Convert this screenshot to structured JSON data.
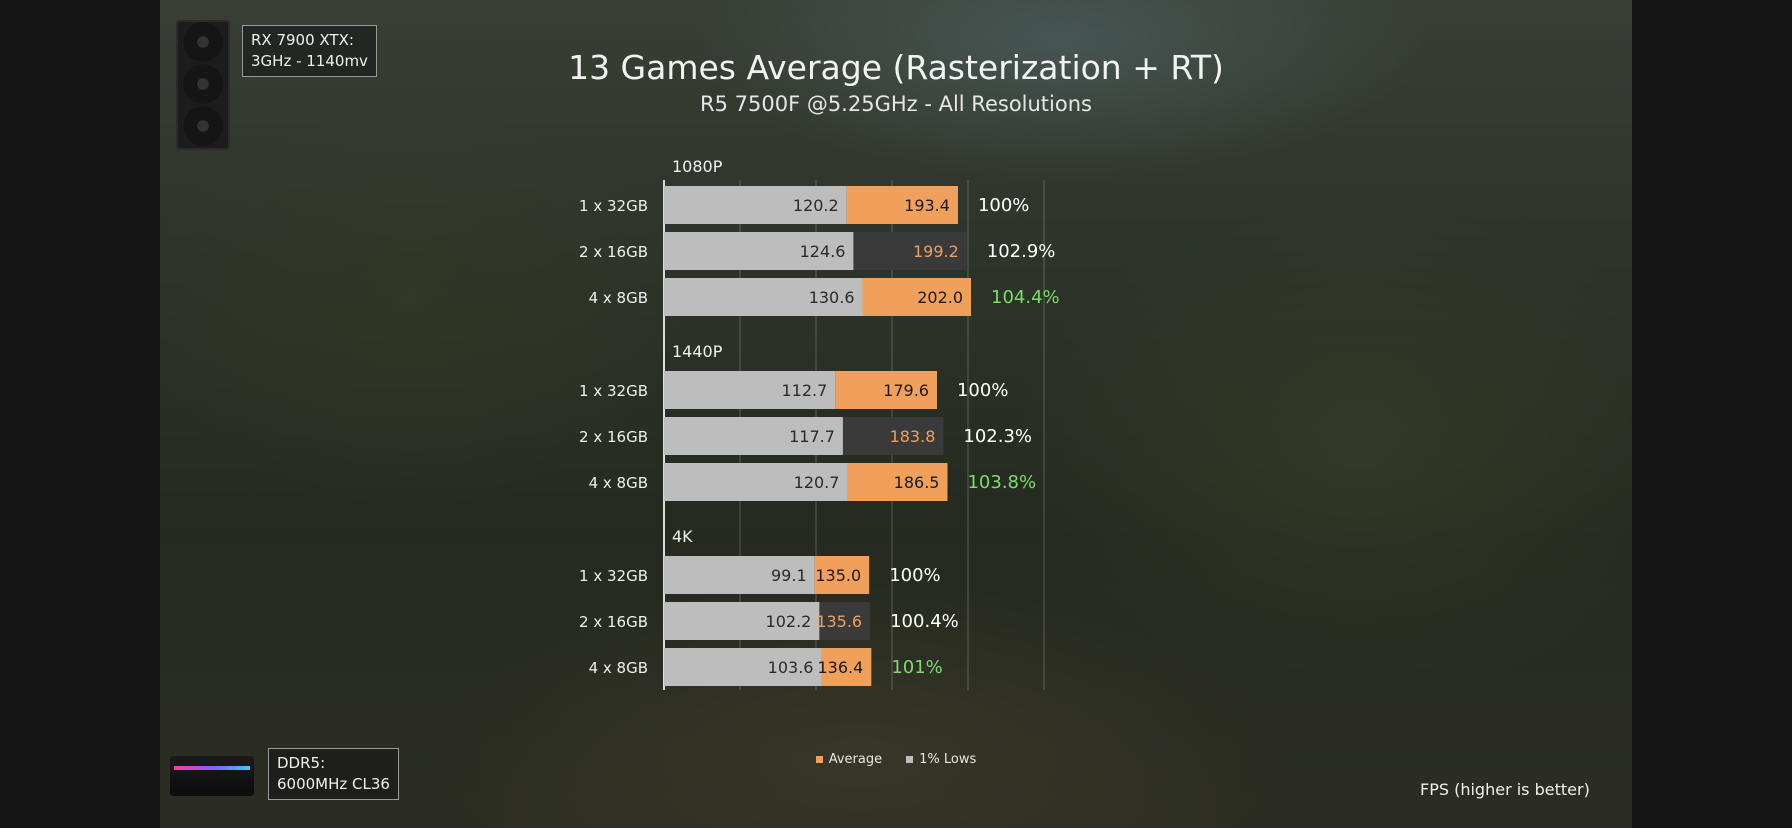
{
  "header": {
    "title": "13 Games Average (Rasterization + RT)",
    "subtitle": "R5 7500F @5.25GHz - All Resolutions"
  },
  "gpu_box": {
    "line1": "RX 7900 XTX:",
    "line2": "3GHz - 1140mv"
  },
  "ram_box": {
    "line1": "DDR5:",
    "line2": "6000MHz CL36"
  },
  "footer": {
    "fps_note": "FPS (higher is better)"
  },
  "chart_data": {
    "type": "bar",
    "orientation": "horizontal",
    "title": "13 Games Average (Rasterization + RT)",
    "subtitle": "R5 7500F @5.25GHz - All Resolutions",
    "xlim": [
      0,
      250
    ],
    "grid": true,
    "legend": {
      "placement": "bottom-center",
      "entries": [
        "Average",
        "1% Lows"
      ]
    },
    "series": [
      {
        "name": "Average",
        "color": "#f0a05a"
      },
      {
        "name": "1% Lows",
        "color": "#bdbdbd"
      }
    ],
    "groups": [
      {
        "label": "1080P",
        "rows": [
          {
            "label": "1 x 32GB",
            "low": 120.2,
            "avg": 193.4,
            "low_text": "120.2",
            "avg_text": "193.4",
            "pct": "100%",
            "pct_color": "#ffffff",
            "avg_bar_color": "#f0a05a",
            "avg_text_color": "#1a1a1a"
          },
          {
            "label": "2 x 16GB",
            "low": 124.6,
            "avg": 199.2,
            "low_text": "124.6",
            "avg_text": "199.2",
            "pct": "102.9%",
            "pct_color": "#ffffff",
            "avg_bar_color": "#3a3a3a",
            "avg_text_color": "#f0a05a"
          },
          {
            "label": "4 x 8GB",
            "low": 130.6,
            "avg": 202.0,
            "low_text": "130.6",
            "avg_text": "202.0",
            "pct": "104.4%",
            "pct_color": "#7ddc6a",
            "avg_bar_color": "#f0a05a",
            "avg_text_color": "#1a1a1a"
          }
        ]
      },
      {
        "label": "1440P",
        "rows": [
          {
            "label": "1 x 32GB",
            "low": 112.7,
            "avg": 179.6,
            "low_text": "112.7",
            "avg_text": "179.6",
            "pct": "100%",
            "pct_color": "#ffffff",
            "avg_bar_color": "#f0a05a",
            "avg_text_color": "#1a1a1a"
          },
          {
            "label": "2 x 16GB",
            "low": 117.7,
            "avg": 183.8,
            "low_text": "117.7",
            "avg_text": "183.8",
            "pct": "102.3%",
            "pct_color": "#ffffff",
            "avg_bar_color": "#3a3a3a",
            "avg_text_color": "#f0a05a"
          },
          {
            "label": "4 x 8GB",
            "low": 120.7,
            "avg": 186.5,
            "low_text": "120.7",
            "avg_text": "186.5",
            "pct": "103.8%",
            "pct_color": "#7ddc6a",
            "avg_bar_color": "#f0a05a",
            "avg_text_color": "#1a1a1a"
          }
        ]
      },
      {
        "label": "4K",
        "rows": [
          {
            "label": "1 x 32GB",
            "low": 99.1,
            "avg": 135.0,
            "low_text": "99.1",
            "avg_text": "135.0",
            "pct": "100%",
            "pct_color": "#ffffff",
            "avg_bar_color": "#f0a05a",
            "avg_text_color": "#1a1a1a"
          },
          {
            "label": "2 x 16GB",
            "low": 102.2,
            "avg": 135.6,
            "low_text": "102.2",
            "avg_text": "135.6",
            "pct": "100.4%",
            "pct_color": "#ffffff",
            "avg_bar_color": "#3a3a3a",
            "avg_text_color": "#f0a05a"
          },
          {
            "label": "4 x 8GB",
            "low": 103.6,
            "avg": 136.4,
            "low_text": "103.6",
            "avg_text": "136.4",
            "pct": "101%",
            "pct_color": "#7ddc6a",
            "avg_bar_color": "#f0a05a",
            "avg_text_color": "#1a1a1a"
          }
        ]
      }
    ]
  }
}
